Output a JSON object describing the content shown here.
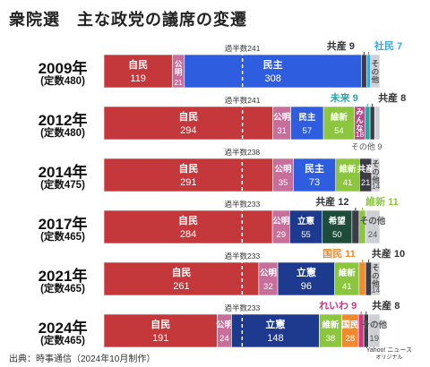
{
  "title": "衆院選　主な政党の議席の変遷",
  "source": "出典：時事通信（2024年10月制作）",
  "credit": {
    "line1": "Yahoo! ニュース",
    "line2": "オリジナル"
  },
  "colors": {
    "自民": "#c4373b",
    "公明": "#c86e9a",
    "民主": "#2f5de0",
    "立憲": "#1e3a8f",
    "社民": "#37a8dc",
    "共産": "#3c3c46",
    "維新": "#8cc63f",
    "みんな": "#b54a8c",
    "未来": "#2aa6a0",
    "希望": "#1e4c3a",
    "国民": "#f08a2d",
    "れいわ": "#d63384",
    "その他": "#cfcfd6",
    "other_text": "#555555",
    "majority_label": "#333333"
  },
  "chart_data": {
    "type": "bar",
    "orientation": "horizontal",
    "stacked": true,
    "title": "衆院選　主な政党の議席の変遷",
    "elections": [
      {
        "year": "2009",
        "year_suffix": "年",
        "capacity": "(定数480)",
        "total": 480,
        "majority_label": "過半数241",
        "majority": 241,
        "segments": [
          {
            "party": "自民",
            "value": 119,
            "label": "自民",
            "value_label": "119"
          },
          {
            "party": "公明",
            "value": 21,
            "label": "公明",
            "value_label": "21",
            "vertical": true
          },
          {
            "party": "民主",
            "value": 308,
            "label": "民主",
            "value_label": "308"
          },
          {
            "party": "共産",
            "value": 9
          },
          {
            "party": "社民",
            "value": 7
          },
          {
            "party": "その他",
            "value": 16,
            "label": "その他",
            "vertical": true
          }
        ],
        "callouts": [
          {
            "party": "共産",
            "name": "共産",
            "value": "9"
          },
          {
            "party": "社民",
            "name": "社民",
            "value": "7"
          }
        ]
      },
      {
        "year": "2012",
        "year_suffix": "年",
        "capacity": "(定数480)",
        "total": 480,
        "majority_label": "過半数241",
        "majority": 241,
        "segments": [
          {
            "party": "自民",
            "value": 294,
            "label": "自民",
            "value_label": "294"
          },
          {
            "party": "公明",
            "value": 31,
            "label": "公明",
            "value_label": "31"
          },
          {
            "party": "民主",
            "value": 57,
            "label": "民主",
            "value_label": "57"
          },
          {
            "party": "維新",
            "value": 54,
            "label": "維新",
            "value_label": "54"
          },
          {
            "party": "みんな",
            "value": 18,
            "label": "みんな",
            "value_label": "18",
            "vertical": true
          },
          {
            "party": "未来",
            "value": 9
          },
          {
            "party": "共産",
            "value": 8
          },
          {
            "party": "その他",
            "value": 9
          }
        ],
        "callouts": [
          {
            "party": "未来",
            "name": "未来",
            "value": "9"
          },
          {
            "party": "共産",
            "name": "共産",
            "value": "8"
          }
        ],
        "below_callout": {
          "party": "その他",
          "name": "その他",
          "value": "9"
        }
      },
      {
        "year": "2014",
        "year_suffix": "年",
        "capacity": "(定数475)",
        "total": 475,
        "majority_label": "過半数238",
        "majority": 238,
        "segments": [
          {
            "party": "自民",
            "value": 291,
            "label": "自民",
            "value_label": "291"
          },
          {
            "party": "公明",
            "value": 35,
            "label": "公明",
            "value_label": "35"
          },
          {
            "party": "民主",
            "value": 73,
            "label": "民主",
            "value_label": "73"
          },
          {
            "party": "維新",
            "value": 41,
            "label": "維新",
            "value_label": "41"
          },
          {
            "party": "共産",
            "value": 21,
            "label": "共産",
            "value_label": "21"
          },
          {
            "party": "その他",
            "value": 14,
            "label": "その他",
            "value_label": "14",
            "vertical": true
          }
        ],
        "callouts": []
      },
      {
        "year": "2017",
        "year_suffix": "年",
        "capacity": "(定数465)",
        "total": 465,
        "majority_label": "過半数233",
        "majority": 233,
        "segments": [
          {
            "party": "自民",
            "value": 284,
            "label": "自民",
            "value_label": "284"
          },
          {
            "party": "公明",
            "value": 29,
            "label": "公明",
            "value_label": "29"
          },
          {
            "party": "立憲",
            "value": 55,
            "label": "立憲",
            "value_label": "55"
          },
          {
            "party": "希望",
            "value": 50,
            "label": "希望",
            "value_label": "50"
          },
          {
            "party": "共産",
            "value": 12
          },
          {
            "party": "維新",
            "value": 11
          },
          {
            "party": "その他",
            "value": 24,
            "label": "その他",
            "value_label": "24"
          }
        ],
        "callouts": [
          {
            "party": "共産",
            "name": "共産",
            "value": "12"
          },
          {
            "party": "維新",
            "name": "維新",
            "value": "11"
          }
        ]
      },
      {
        "year": "2021",
        "year_suffix": "年",
        "capacity": "(定数465)",
        "total": 465,
        "majority_label": "過半数233",
        "majority": 233,
        "segments": [
          {
            "party": "自民",
            "value": 261,
            "label": "自民",
            "value_label": "261"
          },
          {
            "party": "公明",
            "value": 32,
            "label": "公明",
            "value_label": "32"
          },
          {
            "party": "立憲",
            "value": 96,
            "label": "立憲",
            "value_label": "96"
          },
          {
            "party": "維新",
            "value": 41,
            "label": "維新",
            "value_label": "41"
          },
          {
            "party": "国民",
            "value": 11
          },
          {
            "party": "共産",
            "value": 10
          },
          {
            "party": "その他",
            "value": 14,
            "label": "その他",
            "value_label": "14",
            "vertical": true
          }
        ],
        "callouts": [
          {
            "party": "国民",
            "name": "国民",
            "value": "11"
          },
          {
            "party": "共産",
            "name": "共産",
            "value": "10"
          }
        ]
      },
      {
        "year": "2024",
        "year_suffix": "年",
        "capacity": "(定数465)",
        "total": 465,
        "majority_label": "過半数233",
        "majority": 233,
        "segments": [
          {
            "party": "自民",
            "value": 191,
            "label": "自民",
            "value_label": "191"
          },
          {
            "party": "公明",
            "value": 24,
            "label": "公明",
            "value_label": "24"
          },
          {
            "party": "立憲",
            "value": 148,
            "label": "立憲",
            "value_label": "148"
          },
          {
            "party": "維新",
            "value": 38,
            "label": "維新",
            "value_label": "38"
          },
          {
            "party": "国民",
            "value": 28,
            "label": "国民",
            "value_label": "28"
          },
          {
            "party": "れいわ",
            "value": 9
          },
          {
            "party": "共産",
            "value": 8
          },
          {
            "party": "その他",
            "value": 19,
            "label": "その他",
            "value_label": "19"
          }
        ],
        "callouts": [
          {
            "party": "れいわ",
            "name": "れいわ",
            "value": "9"
          },
          {
            "party": "共産",
            "name": "共産",
            "value": "8"
          }
        ]
      }
    ]
  }
}
